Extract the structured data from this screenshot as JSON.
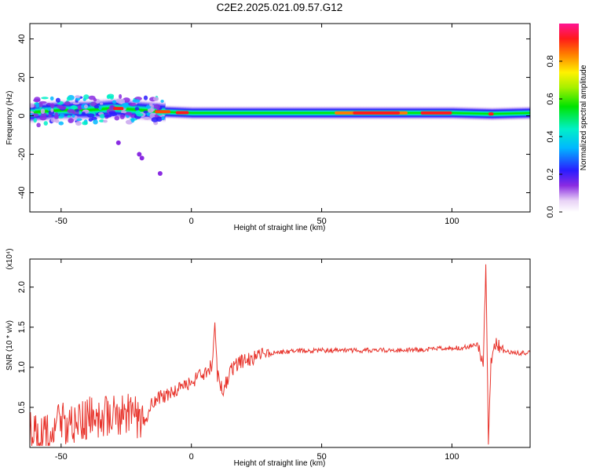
{
  "title": "C2E2.2025.021.09.57.G12",
  "chart_data": [
    {
      "type": "heatmap",
      "xlabel": "Height of straight line (km)",
      "ylabel": "Frequency (Hz)",
      "xlim": [
        -62,
        130
      ],
      "ylim": [
        -50,
        48
      ],
      "xticks": [
        -50,
        0,
        50,
        100
      ],
      "yticks": [
        -40,
        -20,
        0,
        20,
        40
      ],
      "colorbar": {
        "label": "Normalized spectral amplitude",
        "range": [
          0,
          1
        ],
        "ticks": [
          0.0,
          0.2,
          0.4,
          0.6,
          0.8
        ]
      },
      "ridge": [
        {
          "x": -60,
          "y": 2
        },
        {
          "x": -50,
          "y": 3
        },
        {
          "x": -40,
          "y": 3
        },
        {
          "x": -30,
          "y": 4
        },
        {
          "x": -20,
          "y": 3
        },
        {
          "x": -10,
          "y": 2
        },
        {
          "x": 0,
          "y": 1.5
        },
        {
          "x": 20,
          "y": 1.5
        },
        {
          "x": 50,
          "y": 1.5
        },
        {
          "x": 80,
          "y": 1.5
        },
        {
          "x": 100,
          "y": 1.5
        },
        {
          "x": 115,
          "y": 1
        },
        {
          "x": 130,
          "y": 1.5
        }
      ],
      "outliers": [
        {
          "x": -28,
          "y": -14
        },
        {
          "x": -20,
          "y": -20
        },
        {
          "x": -19,
          "y": -22
        },
        {
          "x": -12,
          "y": -30
        }
      ]
    },
    {
      "type": "line",
      "xlabel": "Height of straight line (km)",
      "ylabel": "SNR (10 * v/v)",
      "yscale_label": "(x10⁴)",
      "xlim": [
        -62,
        130
      ],
      "ylim": [
        0,
        2.35
      ],
      "xticks": [
        -50,
        0,
        50,
        100
      ],
      "yticks": [
        0.5,
        1.0,
        1.5,
        2.0
      ],
      "series": [
        {
          "color": "#e8342c",
          "x": [
            -62,
            -55,
            -50,
            -45,
            -40,
            -35,
            -30,
            -25,
            -20,
            -18,
            -15,
            -10,
            -5,
            0,
            3,
            6,
            8,
            9,
            10,
            12,
            15,
            18,
            22,
            26,
            30,
            35,
            40,
            50,
            60,
            70,
            80,
            90,
            100,
            105,
            110,
            112,
            113,
            114,
            115,
            117,
            120,
            125,
            130
          ],
          "y": [
            0.2,
            0.22,
            0.28,
            0.32,
            0.35,
            0.38,
            0.42,
            0.4,
            0.38,
            0.3,
            0.58,
            0.65,
            0.72,
            0.82,
            0.88,
            0.92,
            1.05,
            1.55,
            0.9,
            0.7,
            0.95,
            1.05,
            1.1,
            1.14,
            1.17,
            1.19,
            1.2,
            1.21,
            1.21,
            1.21,
            1.21,
            1.22,
            1.24,
            1.25,
            1.28,
            1.0,
            2.3,
            0.1,
            1.1,
            1.3,
            1.2,
            1.18,
            1.18
          ]
        }
      ]
    }
  ]
}
